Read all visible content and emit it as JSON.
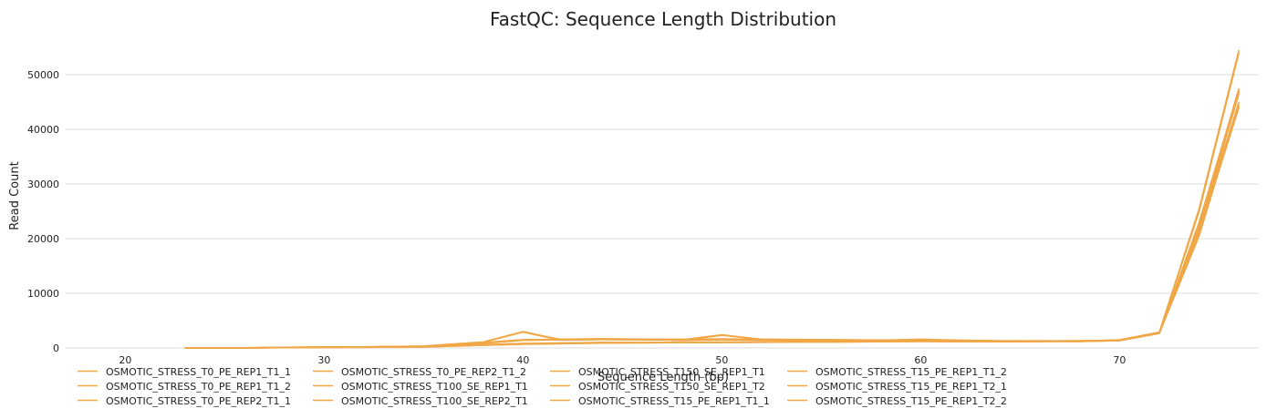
{
  "chart_data": {
    "type": "line",
    "title": "FastQC: Sequence Length Distribution",
    "xlabel": "Sequence Length (bp)",
    "ylabel": "Read Count",
    "xlim": [
      17,
      77
    ],
    "ylim": [
      0,
      57000
    ],
    "xticks": [
      20,
      30,
      40,
      50,
      60,
      70
    ],
    "yticks": [
      0,
      10000,
      20000,
      30000,
      40000,
      50000
    ],
    "grid": "horizontal",
    "legend_position": "bottom",
    "line_color": "#f0a747",
    "series": [
      {
        "name": "OSMOTIC_STRESS_T0_PE_REP1_T1_1",
        "points": [
          [
            23,
            0
          ],
          [
            26,
            20
          ],
          [
            29,
            120
          ],
          [
            32,
            180
          ],
          [
            35,
            300
          ],
          [
            38,
            900
          ],
          [
            40,
            1500
          ],
          [
            42,
            1600
          ],
          [
            44,
            1700
          ],
          [
            46,
            1600
          ],
          [
            48,
            1600
          ],
          [
            50,
            1650
          ],
          [
            52,
            1600
          ],
          [
            54,
            1550
          ],
          [
            56,
            1500
          ],
          [
            58,
            1450
          ],
          [
            60,
            1500
          ],
          [
            62,
            1400
          ],
          [
            64,
            1300
          ],
          [
            66,
            1300
          ],
          [
            68,
            1300
          ],
          [
            70,
            1400
          ],
          [
            72,
            2800
          ],
          [
            74,
            21000
          ],
          [
            76,
            47000
          ]
        ]
      },
      {
        "name": "OSMOTIC_STRESS_T0_PE_REP1_T1_2",
        "points": [
          [
            23,
            0
          ],
          [
            26,
            20
          ],
          [
            29,
            110
          ],
          [
            32,
            170
          ],
          [
            35,
            280
          ],
          [
            38,
            850
          ],
          [
            40,
            1400
          ],
          [
            42,
            1500
          ],
          [
            44,
            1650
          ],
          [
            46,
            1550
          ],
          [
            48,
            1550
          ],
          [
            50,
            1600
          ],
          [
            52,
            1550
          ],
          [
            54,
            1500
          ],
          [
            56,
            1450
          ],
          [
            58,
            1400
          ],
          [
            60,
            1450
          ],
          [
            62,
            1350
          ],
          [
            64,
            1250
          ],
          [
            66,
            1250
          ],
          [
            68,
            1250
          ],
          [
            70,
            1350
          ],
          [
            72,
            2700
          ],
          [
            74,
            20500
          ],
          [
            76,
            44500
          ]
        ]
      },
      {
        "name": "OSMOTIC_STRESS_T0_PE_REP2_T1_1",
        "points": [
          [
            23,
            0
          ],
          [
            26,
            30
          ],
          [
            29,
            150
          ],
          [
            32,
            200
          ],
          [
            35,
            350
          ],
          [
            38,
            1100
          ],
          [
            40,
            3000
          ],
          [
            41,
            2200
          ],
          [
            42,
            1500
          ],
          [
            44,
            1600
          ],
          [
            46,
            1550
          ],
          [
            48,
            1500
          ],
          [
            50,
            2400
          ],
          [
            51,
            2000
          ],
          [
            52,
            1600
          ],
          [
            54,
            1500
          ],
          [
            56,
            1500
          ],
          [
            58,
            1400
          ],
          [
            60,
            1600
          ],
          [
            62,
            1400
          ],
          [
            64,
            1300
          ],
          [
            66,
            1300
          ],
          [
            68,
            1250
          ],
          [
            70,
            1500
          ],
          [
            72,
            2900
          ],
          [
            74,
            25500
          ],
          [
            76,
            54500
          ]
        ]
      },
      {
        "name": "OSMOTIC_STRESS_T0_PE_REP2_T1_2",
        "points": [
          [
            23,
            0
          ],
          [
            26,
            30
          ],
          [
            29,
            140
          ],
          [
            32,
            190
          ],
          [
            35,
            340
          ],
          [
            38,
            1050
          ],
          [
            40,
            2900
          ],
          [
            41,
            2100
          ],
          [
            42,
            1450
          ],
          [
            44,
            1550
          ],
          [
            46,
            1500
          ],
          [
            48,
            1450
          ],
          [
            50,
            2300
          ],
          [
            51,
            1950
          ],
          [
            52,
            1550
          ],
          [
            54,
            1450
          ],
          [
            56,
            1450
          ],
          [
            58,
            1350
          ],
          [
            60,
            1550
          ],
          [
            62,
            1350
          ],
          [
            64,
            1250
          ],
          [
            66,
            1250
          ],
          [
            68,
            1200
          ],
          [
            70,
            1450
          ],
          [
            72,
            2850
          ],
          [
            74,
            25000
          ],
          [
            76,
            54000
          ]
        ]
      },
      {
        "name": "OSMOTIC_STRESS_T100_SE_REP1_T1",
        "points": [
          [
            23,
            0
          ],
          [
            26,
            10
          ],
          [
            29,
            80
          ],
          [
            32,
            120
          ],
          [
            35,
            200
          ],
          [
            38,
            500
          ],
          [
            40,
            700
          ],
          [
            42,
            800
          ],
          [
            44,
            900
          ],
          [
            46,
            950
          ],
          [
            48,
            1000
          ],
          [
            50,
            1000
          ],
          [
            52,
            1050
          ],
          [
            54,
            1100
          ],
          [
            56,
            1100
          ],
          [
            58,
            1150
          ],
          [
            60,
            1200
          ],
          [
            62,
            1150
          ],
          [
            64,
            1150
          ],
          [
            66,
            1200
          ],
          [
            68,
            1250
          ],
          [
            70,
            1350
          ],
          [
            72,
            2700
          ],
          [
            74,
            22000
          ],
          [
            76,
            46500
          ]
        ]
      },
      {
        "name": "OSMOTIC_STRESS_T100_SE_REP2_T1",
        "points": [
          [
            23,
            0
          ],
          [
            26,
            10
          ],
          [
            29,
            70
          ],
          [
            32,
            110
          ],
          [
            35,
            190
          ],
          [
            38,
            480
          ],
          [
            40,
            680
          ],
          [
            42,
            780
          ],
          [
            44,
            880
          ],
          [
            46,
            930
          ],
          [
            48,
            980
          ],
          [
            50,
            980
          ],
          [
            52,
            1030
          ],
          [
            54,
            1080
          ],
          [
            56,
            1080
          ],
          [
            58,
            1130
          ],
          [
            60,
            1180
          ],
          [
            62,
            1130
          ],
          [
            64,
            1130
          ],
          [
            66,
            1180
          ],
          [
            68,
            1230
          ],
          [
            70,
            1330
          ],
          [
            72,
            2650
          ],
          [
            74,
            21500
          ],
          [
            76,
            45000
          ]
        ]
      },
      {
        "name": "OSMOTIC_STRESS_T150_SE_REP1_T1",
        "points": [
          [
            23,
            0
          ],
          [
            26,
            15
          ],
          [
            29,
            90
          ],
          [
            32,
            140
          ],
          [
            35,
            230
          ],
          [
            38,
            600
          ],
          [
            40,
            800
          ],
          [
            42,
            900
          ],
          [
            44,
            1000
          ],
          [
            46,
            1000
          ],
          [
            48,
            1050
          ],
          [
            50,
            1050
          ],
          [
            52,
            1100
          ],
          [
            54,
            1150
          ],
          [
            56,
            1150
          ],
          [
            58,
            1200
          ],
          [
            60,
            1250
          ],
          [
            62,
            1200
          ],
          [
            64,
            1200
          ],
          [
            66,
            1250
          ],
          [
            68,
            1300
          ],
          [
            70,
            1400
          ],
          [
            72,
            2750
          ],
          [
            74,
            21000
          ],
          [
            76,
            44000
          ]
        ]
      },
      {
        "name": "OSMOTIC_STRESS_T150_SE_REP1_T2",
        "points": [
          [
            23,
            0
          ],
          [
            26,
            15
          ],
          [
            29,
            95
          ],
          [
            32,
            145
          ],
          [
            35,
            240
          ],
          [
            38,
            620
          ],
          [
            40,
            820
          ],
          [
            42,
            920
          ],
          [
            44,
            1020
          ],
          [
            46,
            1020
          ],
          [
            48,
            1070
          ],
          [
            50,
            1070
          ],
          [
            52,
            1120
          ],
          [
            54,
            1170
          ],
          [
            56,
            1170
          ],
          [
            58,
            1220
          ],
          [
            60,
            1270
          ],
          [
            62,
            1220
          ],
          [
            64,
            1220
          ],
          [
            66,
            1270
          ],
          [
            68,
            1320
          ],
          [
            70,
            1420
          ],
          [
            72,
            2780
          ],
          [
            74,
            21200
          ],
          [
            76,
            44200
          ]
        ]
      },
      {
        "name": "OSMOTIC_STRESS_T15_PE_REP1_T1_1",
        "points": [
          [
            23,
            0
          ],
          [
            26,
            25
          ],
          [
            29,
            130
          ],
          [
            32,
            180
          ],
          [
            35,
            320
          ],
          [
            38,
            1000
          ],
          [
            40,
            1500
          ],
          [
            42,
            1550
          ],
          [
            44,
            1600
          ],
          [
            46,
            1550
          ],
          [
            48,
            1500
          ],
          [
            50,
            1550
          ],
          [
            52,
            1500
          ],
          [
            54,
            1450
          ],
          [
            56,
            1400
          ],
          [
            58,
            1350
          ],
          [
            60,
            1400
          ],
          [
            62,
            1300
          ],
          [
            64,
            1250
          ],
          [
            66,
            1250
          ],
          [
            68,
            1250
          ],
          [
            70,
            1400
          ],
          [
            72,
            2800
          ],
          [
            74,
            22500
          ],
          [
            76,
            47500
          ]
        ]
      },
      {
        "name": "OSMOTIC_STRESS_T15_PE_REP1_T1_2",
        "points": [
          [
            23,
            0
          ],
          [
            26,
            25
          ],
          [
            29,
            125
          ],
          [
            32,
            175
          ],
          [
            35,
            310
          ],
          [
            38,
            980
          ],
          [
            40,
            1480
          ],
          [
            42,
            1530
          ],
          [
            44,
            1580
          ],
          [
            46,
            1530
          ],
          [
            48,
            1480
          ],
          [
            50,
            1530
          ],
          [
            52,
            1480
          ],
          [
            54,
            1430
          ],
          [
            56,
            1380
          ],
          [
            58,
            1330
          ],
          [
            60,
            1380
          ],
          [
            62,
            1280
          ],
          [
            64,
            1230
          ],
          [
            66,
            1230
          ],
          [
            68,
            1230
          ],
          [
            70,
            1380
          ],
          [
            72,
            2780
          ],
          [
            74,
            22000
          ],
          [
            76,
            46800
          ]
        ]
      },
      {
        "name": "OSMOTIC_STRESS_T15_PE_REP1_T2_1",
        "points": [
          [
            23,
            0
          ],
          [
            26,
            20
          ],
          [
            29,
            120
          ],
          [
            32,
            170
          ],
          [
            35,
            300
          ],
          [
            38,
            950
          ],
          [
            40,
            1450
          ],
          [
            42,
            1500
          ],
          [
            44,
            1550
          ],
          [
            46,
            1500
          ],
          [
            48,
            1450
          ],
          [
            50,
            1500
          ],
          [
            52,
            1450
          ],
          [
            54,
            1400
          ],
          [
            56,
            1350
          ],
          [
            58,
            1300
          ],
          [
            60,
            1350
          ],
          [
            62,
            1250
          ],
          [
            64,
            1200
          ],
          [
            66,
            1200
          ],
          [
            68,
            1200
          ],
          [
            70,
            1350
          ],
          [
            72,
            2750
          ],
          [
            74,
            23000
          ],
          [
            76,
            47200
          ]
        ]
      },
      {
        "name": "OSMOTIC_STRESS_T15_PE_REP1_T2_2",
        "points": [
          [
            23,
            0
          ],
          [
            26,
            20
          ],
          [
            29,
            115
          ],
          [
            32,
            165
          ],
          [
            35,
            290
          ],
          [
            38,
            930
          ],
          [
            40,
            1430
          ],
          [
            42,
            1480
          ],
          [
            44,
            1530
          ],
          [
            46,
            1480
          ],
          [
            48,
            1430
          ],
          [
            50,
            1480
          ],
          [
            52,
            1430
          ],
          [
            54,
            1380
          ],
          [
            56,
            1330
          ],
          [
            58,
            1280
          ],
          [
            60,
            1330
          ],
          [
            62,
            1230
          ],
          [
            64,
            1180
          ],
          [
            66,
            1180
          ],
          [
            68,
            1180
          ],
          [
            70,
            1330
          ],
          [
            72,
            2720
          ],
          [
            74,
            22800
          ],
          [
            76,
            46900
          ]
        ]
      }
    ]
  }
}
